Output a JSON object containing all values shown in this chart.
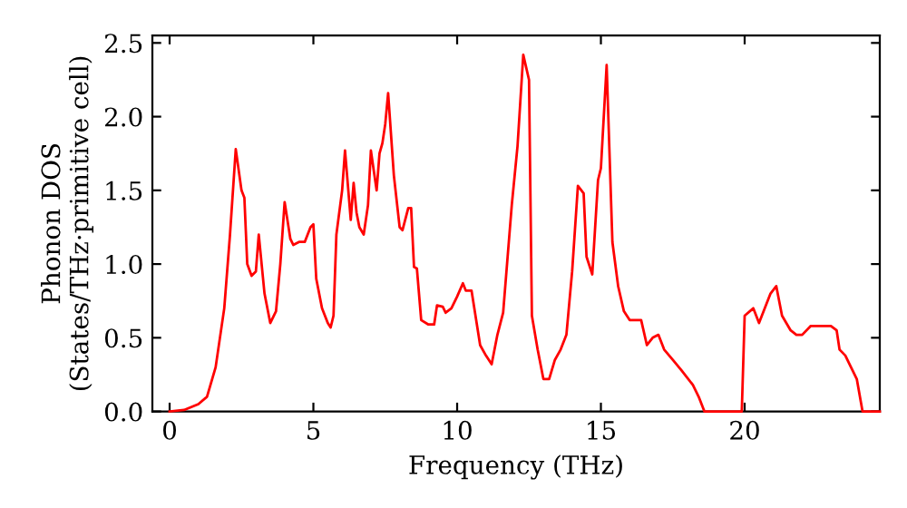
{
  "chart_data": {
    "type": "line",
    "xlabel": "Frequency (THz)",
    "ylabel": "Phonon DOS\n(States/THz·primitive cell)",
    "xlim": [
      -0.6,
      24.7
    ],
    "ylim": [
      0,
      2.55
    ],
    "xticks": [
      0,
      5,
      10,
      15,
      20
    ],
    "yticks": [
      {
        "value": 0,
        "label": "0.0"
      },
      {
        "value": 0.5,
        "label": "0.5"
      },
      {
        "value": 1,
        "label": "1.0"
      },
      {
        "value": 1.5,
        "label": "1.5"
      },
      {
        "value": 2,
        "label": "2.0"
      },
      {
        "value": 2.5,
        "label": "2.5"
      }
    ],
    "grid": false,
    "legend": false,
    "marker": "none",
    "line_style": "solid",
    "series": [
      {
        "color": "#ff0000",
        "x": [
          0,
          0.5,
          1,
          1.3,
          1.6,
          1.9,
          2.1,
          2.3,
          2.5,
          2.6,
          2.7,
          2.85,
          3.0,
          3.1,
          3.3,
          3.5,
          3.7,
          3.85,
          4.0,
          4.2,
          4.3,
          4.5,
          4.7,
          4.9,
          5.0,
          5.1,
          5.3,
          5.5,
          5.6,
          5.7,
          5.8,
          6.0,
          6.1,
          6.3,
          6.4,
          6.5,
          6.6,
          6.75,
          6.9,
          7.0,
          7.2,
          7.3,
          7.4,
          7.5,
          7.6,
          7.8,
          8.0,
          8.1,
          8.3,
          8.4,
          8.5,
          8.6,
          8.75,
          9.0,
          9.2,
          9.3,
          9.5,
          9.6,
          9.8,
          10.0,
          10.2,
          10.3,
          10.5,
          10.8,
          11.0,
          11.2,
          11.4,
          11.6,
          11.9,
          12.1,
          12.3,
          12.5,
          12.6,
          12.8,
          13.0,
          13.2,
          13.4,
          13.6,
          13.8,
          14.0,
          14.2,
          14.4,
          14.5,
          14.7,
          14.9,
          15.0,
          15.2,
          15.4,
          15.6,
          15.8,
          16.0,
          16.2,
          16.4,
          16.6,
          16.8,
          17.0,
          17.2,
          17.5,
          17.8,
          18.2,
          18.4,
          18.6,
          19.0,
          19.9,
          20.0,
          20.3,
          20.5,
          20.9,
          21.1,
          21.3,
          21.6,
          21.8,
          22.0,
          22.3,
          22.7,
          23.0,
          23.2,
          23.3,
          23.5,
          23.7,
          23.9,
          24.1,
          24.7
        ],
        "values": [
          0,
          0.01,
          0.05,
          0.1,
          0.3,
          0.7,
          1.2,
          1.78,
          1.5,
          1.45,
          1.0,
          0.92,
          0.95,
          1.2,
          0.8,
          0.6,
          0.68,
          1.0,
          1.42,
          1.17,
          1.13,
          1.15,
          1.15,
          1.25,
          1.27,
          0.9,
          0.7,
          0.6,
          0.57,
          0.65,
          1.2,
          1.5,
          1.77,
          1.3,
          1.55,
          1.35,
          1.25,
          1.2,
          1.4,
          1.77,
          1.5,
          1.75,
          1.82,
          1.95,
          2.16,
          1.6,
          1.25,
          1.23,
          1.38,
          1.38,
          0.98,
          0.97,
          0.62,
          0.59,
          0.59,
          0.72,
          0.71,
          0.67,
          0.7,
          0.78,
          0.87,
          0.82,
          0.82,
          0.45,
          0.38,
          0.32,
          0.52,
          0.67,
          1.4,
          1.8,
          2.42,
          2.25,
          0.65,
          0.42,
          0.22,
          0.22,
          0.35,
          0.42,
          0.52,
          0.95,
          1.53,
          1.48,
          1.05,
          0.93,
          1.57,
          1.65,
          2.35,
          1.15,
          0.85,
          0.68,
          0.62,
          0.62,
          0.62,
          0.45,
          0.5,
          0.52,
          0.42,
          0.35,
          0.28,
          0.18,
          0.1,
          0,
          0,
          0,
          0.65,
          0.7,
          0.6,
          0.8,
          0.85,
          0.65,
          0.55,
          0.52,
          0.52,
          0.58,
          0.58,
          0.58,
          0.55,
          0.42,
          0.38,
          0.3,
          0.22,
          0,
          0
        ]
      }
    ]
  }
}
